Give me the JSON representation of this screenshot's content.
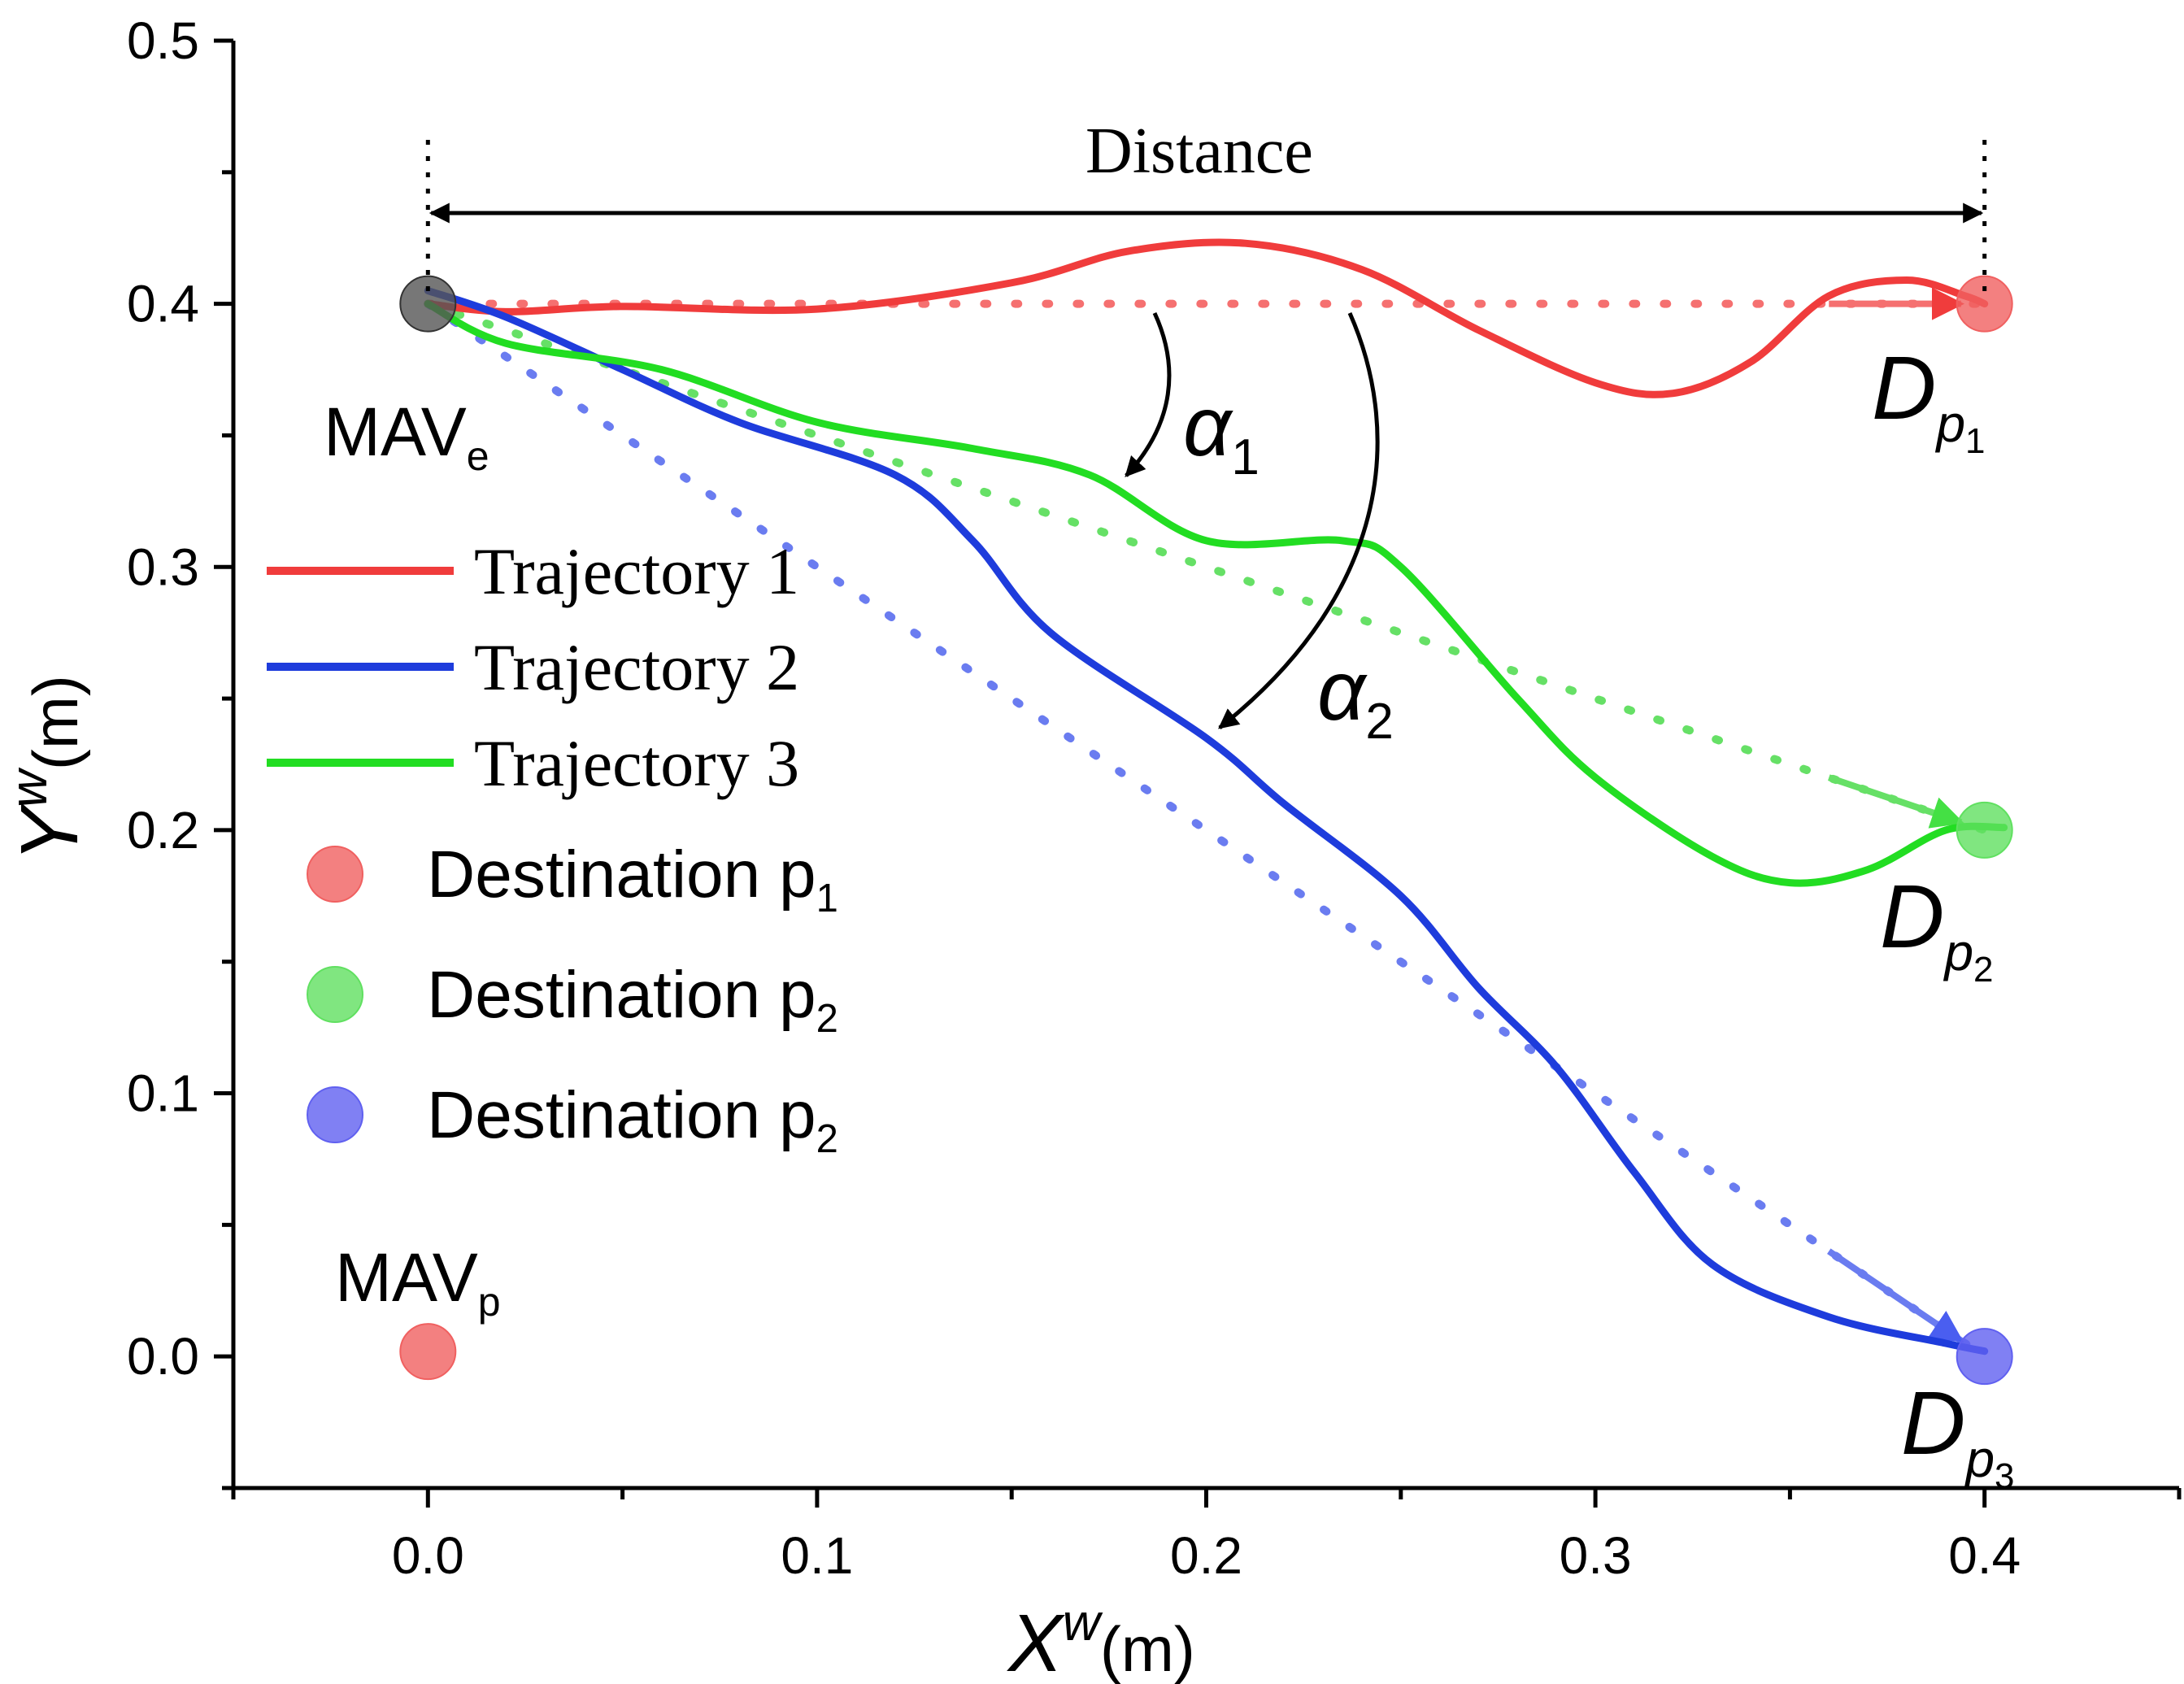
{
  "chart_data": {
    "type": "line",
    "title": "",
    "xlabel": "X",
    "xlabel_sup": "w",
    "xlabel_unit": "(m)",
    "ylabel": "Y",
    "ylabel_sup": "w",
    "ylabel_unit": "(m)",
    "xlim": [
      -0.05,
      0.45
    ],
    "ylim": [
      -0.05,
      0.5
    ],
    "xticks": [
      "0.0",
      "0.1",
      "0.2",
      "0.3",
      "0.4"
    ],
    "yticks": [
      "0.0",
      "0.1",
      "0.2",
      "0.3",
      "0.4",
      "0.5"
    ],
    "grid": false,
    "legend_position": "left",
    "series": [
      {
        "name": "Trajectory 1",
        "color": "#f03c3c",
        "x": [
          0.0,
          0.02,
          0.05,
          0.1,
          0.15,
          0.18,
          0.21,
          0.24,
          0.27,
          0.3,
          0.32,
          0.34,
          0.36,
          0.38,
          0.395,
          0.4
        ],
        "y": [
          0.4,
          0.397,
          0.399,
          0.398,
          0.408,
          0.42,
          0.423,
          0.413,
          0.39,
          0.37,
          0.366,
          0.378,
          0.403,
          0.409,
          0.403,
          0.4
        ],
        "planned_x": [
          0.0,
          0.4
        ],
        "planned_y": [
          0.4,
          0.4
        ]
      },
      {
        "name": "Trajectory 2",
        "color": "#1e3cdc",
        "x": [
          0.0,
          0.02,
          0.05,
          0.08,
          0.12,
          0.14,
          0.16,
          0.2,
          0.22,
          0.25,
          0.27,
          0.29,
          0.31,
          0.33,
          0.36,
          0.39,
          0.4
        ],
        "y": [
          0.405,
          0.395,
          0.375,
          0.355,
          0.335,
          0.31,
          0.275,
          0.235,
          0.21,
          0.175,
          0.14,
          0.11,
          0.07,
          0.035,
          0.015,
          0.005,
          0.002
        ],
        "planned_x": [
          0.0,
          0.4
        ],
        "planned_y": [
          0.4,
          0.0
        ]
      },
      {
        "name": "Trajectory 3",
        "color": "#22dd22",
        "x": [
          0.0,
          0.02,
          0.06,
          0.1,
          0.14,
          0.17,
          0.2,
          0.235,
          0.25,
          0.28,
          0.3,
          0.33,
          0.35,
          0.37,
          0.39,
          0.405
        ],
        "y": [
          0.4,
          0.385,
          0.375,
          0.355,
          0.345,
          0.335,
          0.31,
          0.31,
          0.3,
          0.25,
          0.22,
          0.19,
          0.18,
          0.185,
          0.2,
          0.201
        ],
        "planned_x": [
          0.0,
          0.4
        ],
        "planned_y": [
          0.4,
          0.2
        ]
      }
    ],
    "points": [
      {
        "name": "Destination p",
        "sub": "1",
        "x": 0.4,
        "y": 0.4,
        "color": "#f06060"
      },
      {
        "name": "Destination p",
        "sub": "2",
        "x": 0.4,
        "y": 0.2,
        "color": "#60e060"
      },
      {
        "name": "Destination p",
        "sub": "2",
        "x": 0.4,
        "y": 0.0,
        "color": "#6060f0"
      }
    ],
    "start_point": {
      "x": 0.0,
      "y": 0.4,
      "color": "#555555"
    },
    "pursuer_point": {
      "x": 0.0,
      "y": 0.0,
      "color": "#f06060"
    },
    "annotations": {
      "distance": "Distance",
      "mav_e": "MAV",
      "mav_e_sub": "e",
      "mav_p": "MAV",
      "mav_p_sub": "p",
      "alpha1": "α",
      "alpha1_sub": "1",
      "alpha2": "α",
      "alpha2_sub": "2",
      "dp_label": "D",
      "dp_p": "p",
      "dp1_sub": "1",
      "dp2_sub": "2",
      "dp3_sub": "3"
    }
  }
}
